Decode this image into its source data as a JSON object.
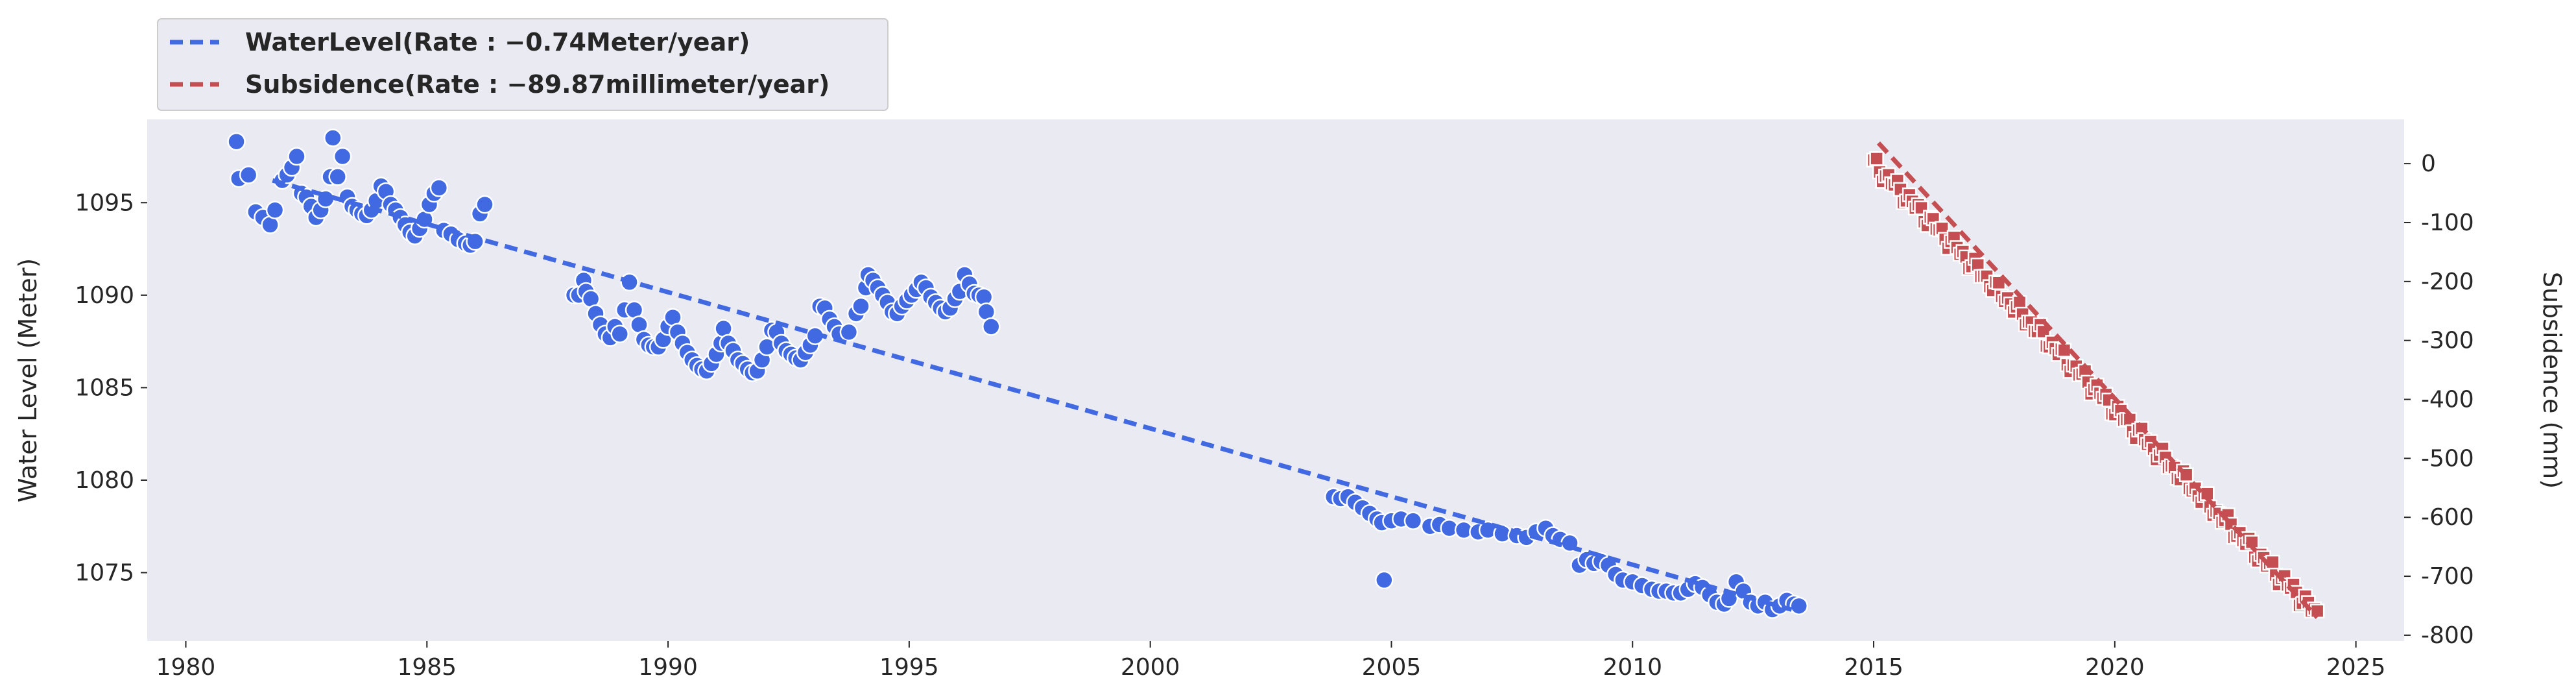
{
  "chart_data": {
    "type": "scatter",
    "title": "",
    "xlabel": "",
    "ylabel_left": "Water Level (Meter)",
    "ylabel_right": "Subsidence (mm)",
    "x_ticks": [
      "1980",
      "1985",
      "1990",
      "1995",
      "2000",
      "2005",
      "2010",
      "2015",
      "2020",
      "2025"
    ],
    "y_left_ticks": [
      "1075",
      "1080",
      "1085",
      "1090",
      "1095"
    ],
    "y_right_ticks": [
      "0",
      "-100",
      "-200",
      "-300",
      "-400",
      "-500",
      "-600",
      "-700",
      "-800"
    ],
    "xlim": [
      1979.2,
      2026.0
    ],
    "ylim_left": [
      1071.3,
      1099.5
    ],
    "ylim_right": [
      -810,
      75
    ],
    "grid": false,
    "legend_position": "top-left, outside above plot",
    "legend": [
      {
        "label": "WaterLevel(Rate : −0.74Meter/year)",
        "color": "#4169e1",
        "style": "dashed"
      },
      {
        "label": "Subsidence(Rate : −89.87millimeter/year)",
        "color": "#c44e52",
        "style": "dashed"
      }
    ],
    "series": [
      {
        "name": "WaterLevel",
        "axis": "left",
        "marker": "circle",
        "color": "#4169e1",
        "points": [
          [
            1981.05,
            1098.3
          ],
          [
            1981.1,
            1096.3
          ],
          [
            1981.3,
            1096.5
          ],
          [
            1981.45,
            1094.5
          ],
          [
            1981.6,
            1094.2
          ],
          [
            1981.75,
            1093.8
          ],
          [
            1981.85,
            1094.6
          ],
          [
            1982.0,
            1096.2
          ],
          [
            1982.1,
            1096.5
          ],
          [
            1982.2,
            1096.9
          ],
          [
            1982.3,
            1097.5
          ],
          [
            1982.4,
            1095.5
          ],
          [
            1982.5,
            1095.3
          ],
          [
            1982.6,
            1094.8
          ],
          [
            1982.7,
            1094.2
          ],
          [
            1982.8,
            1094.6
          ],
          [
            1982.9,
            1095.2
          ],
          [
            1983.0,
            1096.4
          ],
          [
            1983.05,
            1098.5
          ],
          [
            1983.15,
            1096.4
          ],
          [
            1983.25,
            1097.5
          ],
          [
            1983.35,
            1095.3
          ],
          [
            1983.45,
            1094.8
          ],
          [
            1983.55,
            1094.6
          ],
          [
            1983.65,
            1094.4
          ],
          [
            1983.75,
            1094.3
          ],
          [
            1983.85,
            1094.6
          ],
          [
            1983.95,
            1095.1
          ],
          [
            1984.05,
            1095.9
          ],
          [
            1984.15,
            1095.6
          ],
          [
            1984.25,
            1094.9
          ],
          [
            1984.35,
            1094.6
          ],
          [
            1984.45,
            1094.2
          ],
          [
            1984.55,
            1093.8
          ],
          [
            1984.65,
            1093.4
          ],
          [
            1984.75,
            1093.2
          ],
          [
            1984.85,
            1093.6
          ],
          [
            1984.95,
            1094.1
          ],
          [
            1985.05,
            1094.9
          ],
          [
            1985.15,
            1095.5
          ],
          [
            1985.25,
            1095.8
          ],
          [
            1985.35,
            1093.5
          ],
          [
            1985.5,
            1093.3
          ],
          [
            1985.65,
            1093.0
          ],
          [
            1985.8,
            1092.8
          ],
          [
            1985.9,
            1092.7
          ],
          [
            1986.0,
            1092.9
          ],
          [
            1986.1,
            1094.4
          ],
          [
            1986.2,
            1094.9
          ],
          [
            1988.05,
            1090.0
          ],
          [
            1988.15,
            1090.0
          ],
          [
            1988.25,
            1090.8
          ],
          [
            1988.3,
            1090.2
          ],
          [
            1988.4,
            1089.8
          ],
          [
            1988.5,
            1089.0
          ],
          [
            1988.6,
            1088.4
          ],
          [
            1988.7,
            1087.9
          ],
          [
            1988.8,
            1087.7
          ],
          [
            1988.9,
            1088.3
          ],
          [
            1989.0,
            1087.9
          ],
          [
            1989.1,
            1089.2
          ],
          [
            1989.2,
            1090.7
          ],
          [
            1989.3,
            1089.2
          ],
          [
            1989.4,
            1088.4
          ],
          [
            1989.5,
            1087.6
          ],
          [
            1989.6,
            1087.3
          ],
          [
            1989.7,
            1087.2
          ],
          [
            1989.8,
            1087.2
          ],
          [
            1989.9,
            1087.6
          ],
          [
            1990.0,
            1088.3
          ],
          [
            1990.1,
            1088.8
          ],
          [
            1990.2,
            1088.0
          ],
          [
            1990.3,
            1087.4
          ],
          [
            1990.4,
            1086.9
          ],
          [
            1990.5,
            1086.5
          ],
          [
            1990.6,
            1086.2
          ],
          [
            1990.7,
            1086.0
          ],
          [
            1990.8,
            1085.9
          ],
          [
            1990.9,
            1086.3
          ],
          [
            1991.0,
            1086.8
          ],
          [
            1991.1,
            1087.4
          ],
          [
            1991.15,
            1088.2
          ],
          [
            1991.25,
            1087.4
          ],
          [
            1991.35,
            1087.0
          ],
          [
            1991.45,
            1086.5
          ],
          [
            1991.55,
            1086.3
          ],
          [
            1991.65,
            1086.0
          ],
          [
            1991.75,
            1085.8
          ],
          [
            1991.85,
            1085.9
          ],
          [
            1991.95,
            1086.5
          ],
          [
            1992.05,
            1087.2
          ],
          [
            1992.15,
            1088.1
          ],
          [
            1992.25,
            1088.0
          ],
          [
            1992.35,
            1087.4
          ],
          [
            1992.45,
            1087.0
          ],
          [
            1992.55,
            1086.8
          ],
          [
            1992.65,
            1086.6
          ],
          [
            1992.75,
            1086.5
          ],
          [
            1992.85,
            1086.9
          ],
          [
            1992.95,
            1087.3
          ],
          [
            1993.05,
            1087.8
          ],
          [
            1993.15,
            1089.4
          ],
          [
            1993.25,
            1089.3
          ],
          [
            1993.35,
            1088.7
          ],
          [
            1993.45,
            1088.3
          ],
          [
            1993.55,
            1087.9
          ],
          [
            1993.75,
            1088.0
          ],
          [
            1993.9,
            1089.0
          ],
          [
            1994.0,
            1089.4
          ],
          [
            1994.1,
            1090.4
          ],
          [
            1994.15,
            1091.1
          ],
          [
            1994.25,
            1090.8
          ],
          [
            1994.35,
            1090.4
          ],
          [
            1994.45,
            1090.0
          ],
          [
            1994.55,
            1089.6
          ],
          [
            1994.65,
            1089.1
          ],
          [
            1994.75,
            1089.0
          ],
          [
            1994.85,
            1089.4
          ],
          [
            1994.95,
            1089.7
          ],
          [
            1995.05,
            1090.0
          ],
          [
            1995.15,
            1090.3
          ],
          [
            1995.25,
            1090.7
          ],
          [
            1995.35,
            1090.4
          ],
          [
            1995.45,
            1089.9
          ],
          [
            1995.55,
            1089.6
          ],
          [
            1995.65,
            1089.3
          ],
          [
            1995.75,
            1089.1
          ],
          [
            1995.85,
            1089.3
          ],
          [
            1995.95,
            1089.8
          ],
          [
            1996.05,
            1090.2
          ],
          [
            1996.15,
            1091.1
          ],
          [
            1996.25,
            1090.6
          ],
          [
            1996.35,
            1090.1
          ],
          [
            1996.45,
            1090.0
          ],
          [
            1996.55,
            1089.9
          ],
          [
            1996.6,
            1089.1
          ],
          [
            1996.7,
            1088.3
          ],
          [
            2003.8,
            1079.1
          ],
          [
            2003.95,
            1079.0
          ],
          [
            2004.1,
            1079.1
          ],
          [
            2004.25,
            1078.8
          ],
          [
            2004.4,
            1078.5
          ],
          [
            2004.55,
            1078.2
          ],
          [
            2004.7,
            1077.9
          ],
          [
            2004.8,
            1077.7
          ],
          [
            2004.85,
            1074.6
          ],
          [
            2005.0,
            1077.8
          ],
          [
            2005.2,
            1077.9
          ],
          [
            2005.45,
            1077.8
          ],
          [
            2005.8,
            1077.5
          ],
          [
            2006.0,
            1077.6
          ],
          [
            2006.2,
            1077.4
          ],
          [
            2006.5,
            1077.3
          ],
          [
            2006.8,
            1077.2
          ],
          [
            2007.0,
            1077.3
          ],
          [
            2007.3,
            1077.1
          ],
          [
            2007.6,
            1077.0
          ],
          [
            2007.8,
            1076.9
          ],
          [
            2008.0,
            1077.2
          ],
          [
            2008.2,
            1077.4
          ],
          [
            2008.35,
            1077.0
          ],
          [
            2008.5,
            1076.8
          ],
          [
            2008.7,
            1076.6
          ],
          [
            2008.9,
            1075.4
          ],
          [
            2009.05,
            1075.7
          ],
          [
            2009.2,
            1075.5
          ],
          [
            2009.35,
            1075.6
          ],
          [
            2009.5,
            1075.4
          ],
          [
            2009.65,
            1074.9
          ],
          [
            2009.8,
            1074.6
          ],
          [
            2010.0,
            1074.5
          ],
          [
            2010.2,
            1074.3
          ],
          [
            2010.4,
            1074.1
          ],
          [
            2010.55,
            1074.0
          ],
          [
            2010.7,
            1074.0
          ],
          [
            2010.85,
            1073.9
          ],
          [
            2011.0,
            1073.9
          ],
          [
            2011.15,
            1074.1
          ],
          [
            2011.3,
            1074.4
          ],
          [
            2011.45,
            1074.2
          ],
          [
            2011.6,
            1073.8
          ],
          [
            2011.75,
            1073.4
          ],
          [
            2011.9,
            1073.3
          ],
          [
            2012.0,
            1073.6
          ],
          [
            2012.15,
            1074.5
          ],
          [
            2012.3,
            1074.0
          ],
          [
            2012.45,
            1073.4
          ],
          [
            2012.6,
            1073.2
          ],
          [
            2012.75,
            1073.4
          ],
          [
            2012.9,
            1073.0
          ],
          [
            2013.05,
            1073.2
          ],
          [
            2013.2,
            1073.5
          ],
          [
            2013.35,
            1073.3
          ],
          [
            2013.45,
            1073.2
          ]
        ],
        "trend": {
          "x0": 1981.8,
          "y0": 1096.2,
          "x1": 2013.3,
          "y1": 1073.0
        }
      },
      {
        "name": "Subsidence",
        "axis": "right",
        "marker": "square",
        "color": "#c44e52",
        "trend": {
          "x0": 2015.1,
          "y0": 35,
          "x1": 2024.2,
          "y1": -770
        },
        "range": {
          "x_start": 2015.0,
          "x_end": 2024.2,
          "y_start": 0,
          "y_end": -765
        }
      }
    ]
  }
}
